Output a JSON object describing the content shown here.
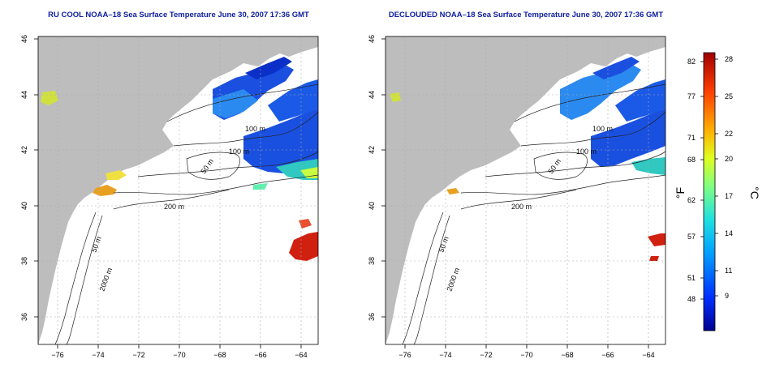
{
  "panels": [
    {
      "title": "RU COOL NOAA–18 Sea Surface Temperature June 30, 2007 17:36 GMT",
      "variant": "raw"
    },
    {
      "title": "DECLOUDED NOAA–18 Sea Surface Temperature June 30, 2007 17:36 GMT",
      "variant": "declouded"
    }
  ],
  "map": {
    "lon_ticks": [
      "−76",
      "−74",
      "−72",
      "−70",
      "−68",
      "−66",
      "−64"
    ],
    "lat_ticks": [
      "36",
      "38",
      "40",
      "42",
      "44",
      "46"
    ],
    "contour_labels": [
      "100 m",
      "100 m",
      "50 m",
      "200 m",
      "50 m",
      "2000 m"
    ]
  },
  "colorbar": {
    "fahrenheit_label": "°F",
    "celsius_label": "°C",
    "fahrenheit_ticks": [
      "82",
      "77",
      "71",
      "68",
      "62",
      "57",
      "51",
      "48"
    ],
    "celsius_ticks": [
      "28",
      "25",
      "22",
      "20",
      "17",
      "14",
      "11",
      "9"
    ],
    "colors": [
      "#00008f",
      "#0030ff",
      "#00a0ff",
      "#20e0e0",
      "#80ff80",
      "#e0ff20",
      "#ffb000",
      "#ff4000",
      "#a00000"
    ]
  }
}
